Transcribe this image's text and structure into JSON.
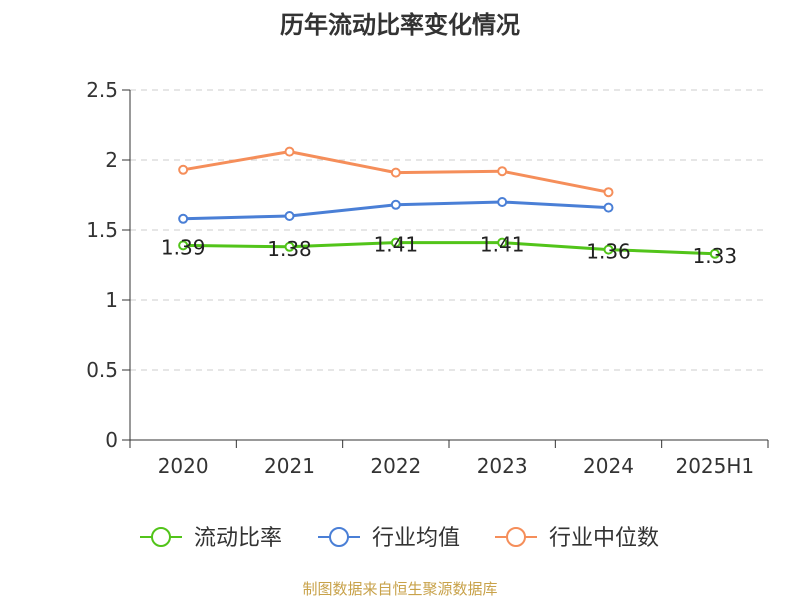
{
  "chart_data": {
    "type": "line",
    "title": "历年流动比率变化情况",
    "categories": [
      "2020",
      "2021",
      "2022",
      "2023",
      "2024",
      "2025H1"
    ],
    "ylim": [
      0,
      2.5
    ],
    "yticks": [
      "0",
      "0.5",
      "1",
      "1.5",
      "2",
      "2.5"
    ],
    "grid": true,
    "legend_position": "bottom",
    "series": [
      {
        "name": "流动比率",
        "color": "#52c41a",
        "values": [
          1.39,
          1.38,
          1.41,
          1.41,
          1.36,
          1.33
        ],
        "labels": [
          "1.39",
          "1.38",
          "1.41",
          "1.41",
          "1.36",
          "1.33"
        ]
      },
      {
        "name": "行业均值",
        "color": "#4a7fd6",
        "values": [
          1.58,
          1.6,
          1.68,
          1.7,
          1.66,
          null
        ]
      },
      {
        "name": "行业中位数",
        "color": "#f58e5a",
        "values": [
          1.93,
          2.06,
          1.91,
          1.92,
          1.77,
          null
        ]
      }
    ]
  },
  "footer": {
    "source": "制图数据来自恒生聚源数据库"
  }
}
